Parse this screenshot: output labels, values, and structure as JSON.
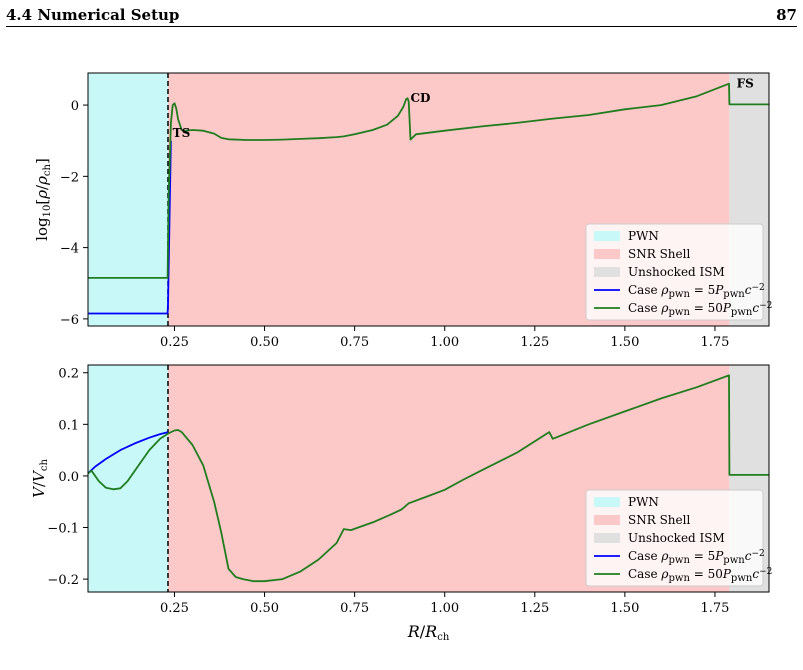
{
  "page": {
    "section_title": "4.4 Numerical Setup",
    "page_number": "87"
  },
  "colors": {
    "pwn_region": "#c8f8f8",
    "shell_region": "#fdc8c8",
    "ism_region": "#e0e0e0",
    "case_low": "#0000ff",
    "case_high": "#1e7d1e",
    "ts_line": "#000000"
  },
  "chart_data": [
    {
      "type": "line",
      "ylabel": "log10[ρ/ρch]",
      "xlabel": "",
      "xlim": [
        0.01,
        1.9
      ],
      "ylim": [
        -6.2,
        0.9
      ],
      "xticks": [
        0.25,
        0.5,
        0.75,
        1.0,
        1.25,
        1.5,
        1.75
      ],
      "xtick_labels": [
        "0.25",
        "0.50",
        "0.75",
        "1.00",
        "1.25",
        "1.50",
        "1.75"
      ],
      "yticks": [
        0,
        -2,
        -4,
        -6
      ],
      "ytick_labels": [
        "0",
        "−2",
        "−4",
        "−6"
      ],
      "regions": [
        {
          "name": "PWN",
          "from": 0.01,
          "to": 0.232
        },
        {
          "name": "SNR Shell",
          "from": 0.232,
          "to": 1.79
        },
        {
          "name": "Unshocked ISM",
          "from": 1.79,
          "to": 1.9
        }
      ],
      "vline": 0.232,
      "annotations": [
        {
          "text": "TS",
          "x": 0.245,
          "y": -0.9
        },
        {
          "text": "CD",
          "x": 0.905,
          "y": 0.08
        },
        {
          "text": "FS",
          "x": 1.81,
          "y": 0.5
        }
      ],
      "legend": {
        "placement": "lower-right",
        "entries": [
          "PWN",
          "SNR Shell",
          "Unshocked ISM",
          "Case ρpwn = 5Ppwnc−2",
          "Case ρpwn = 50Ppwnc−2"
        ]
      },
      "series": [
        {
          "name": "Case ρpwn = 5Ppwnc−2",
          "x": [
            0.01,
            0.231,
            0.232,
            0.24
          ],
          "y": [
            -5.85,
            -5.85,
            -5.6,
            -1.0
          ]
        },
        {
          "name": "Case ρpwn = 50Ppwnc−2",
          "x": [
            0.01,
            0.231,
            0.234,
            0.24,
            0.245,
            0.25,
            0.255,
            0.26,
            0.27,
            0.28,
            0.3,
            0.33,
            0.36,
            0.38,
            0.4,
            0.45,
            0.5,
            0.55,
            0.6,
            0.65,
            0.7,
            0.72,
            0.75,
            0.8,
            0.84,
            0.87,
            0.885,
            0.893,
            0.897,
            0.9,
            0.905,
            0.92,
            1.0,
            1.1,
            1.2,
            1.3,
            1.4,
            1.5,
            1.6,
            1.7,
            1.789,
            1.79,
            1.9
          ],
          "y": [
            -4.85,
            -4.85,
            -2.5,
            -0.5,
            0.0,
            0.05,
            -0.1,
            -0.4,
            -0.7,
            -0.72,
            -0.7,
            -0.72,
            -0.8,
            -0.92,
            -0.96,
            -0.98,
            -0.98,
            -0.97,
            -0.95,
            -0.93,
            -0.9,
            -0.88,
            -0.82,
            -0.7,
            -0.55,
            -0.3,
            -0.05,
            0.17,
            0.19,
            0.1,
            -0.97,
            -0.82,
            -0.72,
            -0.6,
            -0.5,
            -0.38,
            -0.28,
            -0.12,
            0.0,
            0.25,
            0.6,
            0.02,
            0.02
          ]
        }
      ]
    },
    {
      "type": "line",
      "ylabel": "V/Vch",
      "xlabel": "R/Rch",
      "xlim": [
        0.01,
        1.9
      ],
      "ylim": [
        -0.225,
        0.215
      ],
      "xticks": [
        0.25,
        0.5,
        0.75,
        1.0,
        1.25,
        1.5,
        1.75
      ],
      "xtick_labels": [
        "0.25",
        "0.50",
        "0.75",
        "1.00",
        "1.25",
        "1.50",
        "1.75"
      ],
      "yticks": [
        0.2,
        0.1,
        0.0,
        -0.1,
        -0.2
      ],
      "ytick_labels": [
        "0.2",
        "0.1",
        "0.0",
        "−0.1",
        "−0.2"
      ],
      "regions": [
        {
          "name": "PWN",
          "from": 0.01,
          "to": 0.232
        },
        {
          "name": "SNR Shell",
          "from": 0.232,
          "to": 1.79
        },
        {
          "name": "Unshocked ISM",
          "from": 1.79,
          "to": 1.9
        }
      ],
      "vline": 0.232,
      "legend": {
        "placement": "lower-right",
        "entries": [
          "PWN",
          "SNR Shell",
          "Unshocked ISM",
          "Case ρpwn = 5Ppwnc−2",
          "Case ρpwn = 50Ppwnc−2"
        ]
      },
      "series": [
        {
          "name": "Case ρpwn = 5Ppwnc−2",
          "x": [
            0.01,
            0.03,
            0.06,
            0.1,
            0.14,
            0.18,
            0.21,
            0.232
          ],
          "y": [
            0.005,
            0.018,
            0.033,
            0.05,
            0.063,
            0.074,
            0.081,
            0.085
          ]
        },
        {
          "name": "Case ρpwn = 50Ppwnc−2",
          "x": [
            0.01,
            0.02,
            0.04,
            0.06,
            0.08,
            0.1,
            0.12,
            0.15,
            0.18,
            0.21,
            0.232,
            0.25,
            0.26,
            0.27,
            0.3,
            0.33,
            0.36,
            0.38,
            0.4,
            0.42,
            0.44,
            0.47,
            0.5,
            0.55,
            0.6,
            0.65,
            0.7,
            0.72,
            0.74,
            0.76,
            0.8,
            0.85,
            0.88,
            0.9,
            0.95,
            1.0,
            1.05,
            1.1,
            1.2,
            1.29,
            1.3,
            1.4,
            1.5,
            1.6,
            1.7,
            1.789,
            1.79,
            1.9
          ],
          "y": [
            0.005,
            0.01,
            -0.01,
            -0.023,
            -0.026,
            -0.024,
            -0.01,
            0.02,
            0.05,
            0.072,
            0.082,
            0.088,
            0.089,
            0.085,
            0.06,
            0.02,
            -0.05,
            -0.11,
            -0.18,
            -0.196,
            -0.2,
            -0.204,
            -0.204,
            -0.2,
            -0.185,
            -0.162,
            -0.13,
            -0.103,
            -0.105,
            -0.1,
            -0.09,
            -0.075,
            -0.065,
            -0.053,
            -0.04,
            -0.027,
            -0.008,
            0.01,
            0.045,
            0.085,
            0.072,
            0.1,
            0.125,
            0.15,
            0.172,
            0.195,
            0.002,
            0.002
          ]
        }
      ]
    }
  ]
}
